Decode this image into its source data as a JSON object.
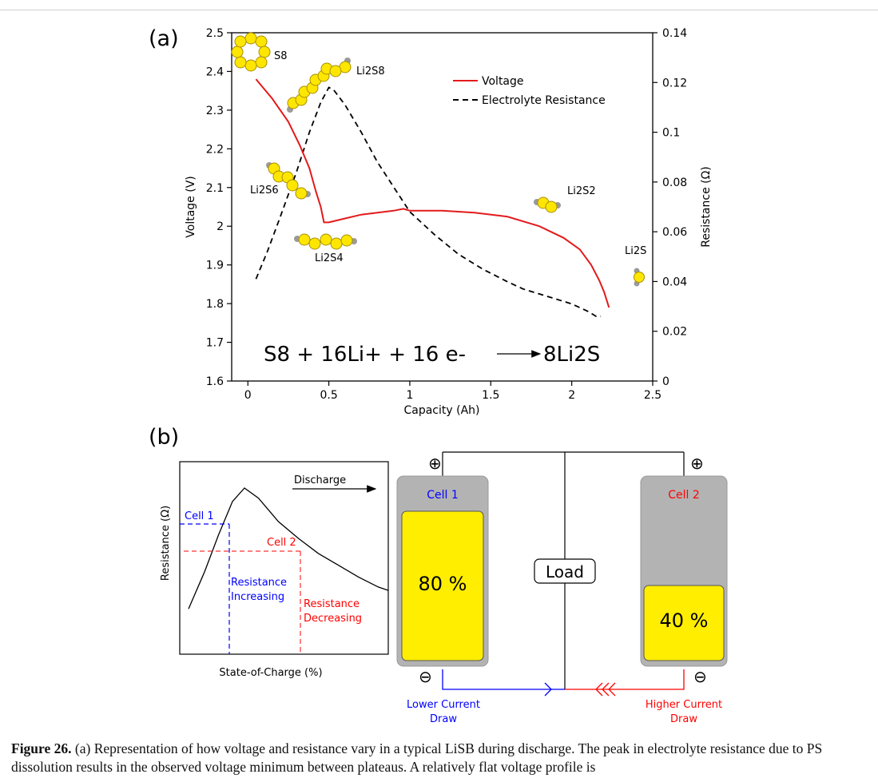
{
  "panel_a": {
    "label": "(a)",
    "xlabel": "Capacity (Ah)",
    "ylabel_left": "Voltage (V)",
    "ylabel_right": "Resistance (Ω)",
    "legend": {
      "voltage": "Voltage",
      "resistance": "Electrolyte Resistance"
    },
    "species": {
      "s8": "S8",
      "li2s8": "Li2S8",
      "li2s6": "Li2S6",
      "li2s4": "Li2S4",
      "li2s2": "Li2S2",
      "li2s": "Li2S"
    },
    "equation": {
      "lhs": "S8 + 16Li+ + 16 e-",
      "rhs": "8Li2S"
    }
  },
  "panel_b": {
    "label": "(b)",
    "sketch": {
      "ylabel": "Resistance (Ω)",
      "xlabel": "State-of-Charge (%)",
      "discharge": "Discharge",
      "cell1": "Cell 1",
      "cell2": "Cell 2",
      "inc_1": "Resistance",
      "inc_2": "Increasing",
      "dec_1": "Resistance",
      "dec_2": "Decreasing"
    },
    "circuit": {
      "cell1_label": "Cell 1",
      "cell1_level": "80 %",
      "cell1_fraction": 0.8,
      "cell2_label": "Cell 2",
      "cell2_level": "40 %",
      "cell2_fraction": 0.4,
      "load": "Load",
      "plus": "⊕",
      "minus": "⊖",
      "lower_1": "Lower Current",
      "lower_2": "Draw",
      "higher_1": "Higher Current",
      "higher_2": "Draw"
    }
  },
  "caption": {
    "prefix": "Figure 26.",
    "text": " (a) Representation of how voltage and resistance vary in a typical LiSB during discharge. The peak in electrolyte resistance due to PS dissolution results in the observed voltage minimum between plateaus. A relatively flat voltage profile is"
  },
  "colors": {
    "voltage": "#e31a1c",
    "resistance": "#000000",
    "cell1": "#0000ff",
    "cell2": "#ff0000",
    "fill": "#ffee00",
    "casing": "#b3b3b3"
  },
  "chart_data": [
    {
      "type": "line",
      "title": "",
      "xlabel": "Capacity (Ah)",
      "ylabel": "Voltage (V)",
      "y2label": "Resistance (Ω)",
      "xlim": [
        -0.1,
        2.5
      ],
      "ylim": [
        1.6,
        2.5
      ],
      "y2lim": [
        0,
        0.14
      ],
      "xticks": [
        "0",
        "0.5",
        "1",
        "1.5",
        "2",
        "2.5"
      ],
      "yticks": [
        "1.6",
        "1.7",
        "1.8",
        "1.9",
        "2",
        "2.1",
        "2.2",
        "2.3",
        "2.4",
        "2.5"
      ],
      "y2ticks": [
        "0",
        "0.02",
        "0.04",
        "0.06",
        "0.08",
        "0.1",
        "0.12",
        "0.14"
      ],
      "legend_position": "top-right",
      "grid": false,
      "series": [
        {
          "name": "Voltage",
          "axis": "left",
          "style": "solid",
          "x": [
            0.05,
            0.15,
            0.25,
            0.32,
            0.38,
            0.42,
            0.45,
            0.47,
            0.5,
            0.6,
            0.7,
            0.8,
            0.9,
            0.96,
            1.0,
            1.2,
            1.4,
            1.6,
            1.8,
            1.95,
            2.05,
            2.12,
            2.17,
            2.2,
            2.23
          ],
          "y": [
            2.38,
            2.33,
            2.27,
            2.21,
            2.15,
            2.09,
            2.05,
            2.01,
            2.01,
            2.02,
            2.03,
            2.035,
            2.04,
            2.045,
            2.04,
            2.04,
            2.035,
            2.025,
            2.0,
            1.97,
            1.94,
            1.9,
            1.86,
            1.83,
            1.79
          ]
        },
        {
          "name": "Electrolyte Resistance",
          "axis": "right",
          "style": "dashed",
          "x": [
            0.05,
            0.12,
            0.2,
            0.3,
            0.38,
            0.45,
            0.5,
            0.53,
            0.6,
            0.7,
            0.8,
            0.9,
            1.0,
            1.15,
            1.3,
            1.45,
            1.6,
            1.7,
            1.8,
            1.9,
            2.0,
            2.1,
            2.15,
            2.18
          ],
          "y": [
            0.041,
            0.052,
            0.066,
            0.084,
            0.1,
            0.112,
            0.118,
            0.117,
            0.111,
            0.1,
            0.088,
            0.078,
            0.068,
            0.059,
            0.051,
            0.045,
            0.04,
            0.037,
            0.035,
            0.033,
            0.031,
            0.028,
            0.026,
            0.026
          ]
        }
      ]
    },
    {
      "type": "line",
      "title": "",
      "xlabel": "State-of-Charge (%)",
      "ylabel": "Resistance (Ω)",
      "grid": false,
      "series": [
        {
          "name": "",
          "x": [
            0.0,
            0.08,
            0.15,
            0.22,
            0.28,
            0.35,
            0.45,
            0.55,
            0.65,
            0.75,
            0.85,
            0.95,
            1.0
          ],
          "y": [
            0.18,
            0.4,
            0.62,
            0.82,
            0.9,
            0.84,
            0.7,
            0.6,
            0.51,
            0.44,
            0.37,
            0.31,
            0.29
          ]
        }
      ]
    }
  ]
}
